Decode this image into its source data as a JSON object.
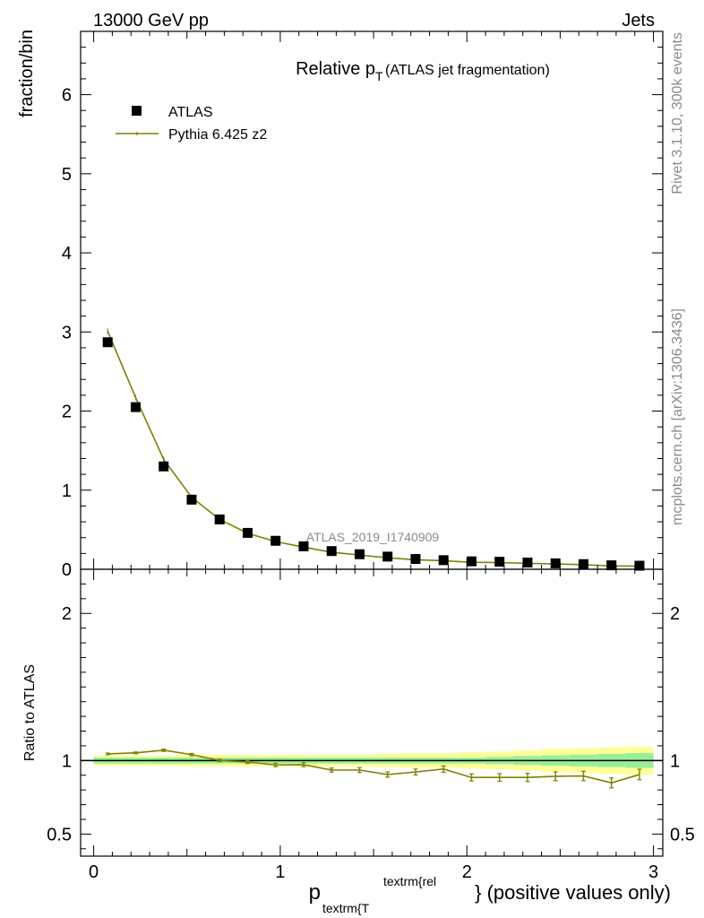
{
  "header": {
    "left": "13000 GeV pp",
    "right": "Jets"
  },
  "side_labels": {
    "top": "Rivet 3.1.10,  300k events",
    "bottom": "mcplots.cern.ch [arXiv:1306.3436]"
  },
  "chart_data": [
    {
      "type": "scatter",
      "title_main": "Relative p",
      "title_sub": "T",
      "title_rest": " (ATLAS jet fragmentation)",
      "ylabel": "fraction/bin",
      "watermark": "ATLAS_2019_I1740909",
      "xlim": [
        -0.07,
        3.05
      ],
      "ylim": [
        0,
        6.8
      ],
      "yticks": [
        "0",
        "1",
        "2",
        "3",
        "4",
        "5",
        "6"
      ],
      "legend_position": "top-left",
      "series": [
        {
          "name": "ATLAS",
          "style": "square-markers",
          "color": "#000000",
          "x": [
            0.075,
            0.225,
            0.375,
            0.525,
            0.675,
            0.825,
            0.975,
            1.125,
            1.275,
            1.425,
            1.575,
            1.725,
            1.875,
            2.025,
            2.175,
            2.325,
            2.475,
            2.625,
            2.775,
            2.925
          ],
          "y": [
            2.87,
            2.05,
            1.3,
            0.88,
            0.63,
            0.46,
            0.36,
            0.29,
            0.23,
            0.19,
            0.16,
            0.13,
            0.115,
            0.1,
            0.095,
            0.085,
            0.075,
            0.065,
            0.05,
            0.045
          ]
        },
        {
          "name": "Pythia 6.425 z2",
          "style": "line",
          "color": "#808000",
          "x": [
            0.075,
            0.225,
            0.375,
            0.525,
            0.675,
            0.825,
            0.975,
            1.125,
            1.275,
            1.425,
            1.575,
            1.725,
            1.875,
            2.025,
            2.175,
            2.325,
            2.475,
            2.625,
            2.775,
            2.925
          ],
          "y": [
            3.01,
            2.17,
            1.39,
            0.91,
            0.63,
            0.455,
            0.35,
            0.28,
            0.215,
            0.18,
            0.145,
            0.12,
            0.108,
            0.088,
            0.084,
            0.075,
            0.067,
            0.058,
            0.042,
            0.04
          ]
        }
      ]
    },
    {
      "type": "line",
      "ylabel": "Ratio to ATLAS",
      "xlabel_main": "p",
      "xlabel_sub": "textrm{T",
      "xlabel_sup": "textrm{rel",
      "xlabel_rest": "} (positive values only)",
      "xlim": [
        -0.07,
        3.05
      ],
      "ylim": [
        0.35,
        2.3
      ],
      "yticks": [
        "0.5",
        "1",
        "2"
      ],
      "xticks": [
        "0",
        "1",
        "2",
        "3"
      ],
      "bins": [
        0.0,
        0.15,
        0.3,
        0.45,
        0.6,
        0.75,
        0.9,
        1.05,
        1.2,
        1.35,
        1.5,
        1.65,
        1.8,
        1.95,
        2.1,
        2.25,
        2.4,
        2.55,
        2.7,
        2.85,
        3.0
      ],
      "band_inner_halfwidth": [
        0.02,
        0.02,
        0.02,
        0.02,
        0.02,
        0.02,
        0.02,
        0.02,
        0.02,
        0.02,
        0.02,
        0.02,
        0.02,
        0.02,
        0.025,
        0.03,
        0.035,
        0.04,
        0.045,
        0.05
      ],
      "band_outer_halfwidth": [
        0.035,
        0.035,
        0.035,
        0.04,
        0.04,
        0.04,
        0.04,
        0.04,
        0.04,
        0.04,
        0.045,
        0.05,
        0.05,
        0.055,
        0.06,
        0.07,
        0.08,
        0.085,
        0.09,
        0.095
      ],
      "series": [
        {
          "name": "Pythia 6.425 z2",
          "color": "#808000",
          "x": [
            0.075,
            0.225,
            0.375,
            0.525,
            0.675,
            0.825,
            0.975,
            1.125,
            1.275,
            1.425,
            1.575,
            1.725,
            1.875,
            2.025,
            2.175,
            2.325,
            2.475,
            2.625,
            2.775,
            2.925
          ],
          "y": [
            1.045,
            1.052,
            1.07,
            1.04,
            1.0,
            0.99,
            0.97,
            0.972,
            0.935,
            0.935,
            0.905,
            0.922,
            0.942,
            0.885,
            0.885,
            0.885,
            0.893,
            0.895,
            0.848,
            0.905
          ],
          "err": [
            0.006,
            0.006,
            0.008,
            0.008,
            0.008,
            0.01,
            0.012,
            0.014,
            0.014,
            0.016,
            0.018,
            0.02,
            0.022,
            0.024,
            0.026,
            0.028,
            0.03,
            0.032,
            0.034,
            0.036
          ]
        }
      ]
    }
  ]
}
